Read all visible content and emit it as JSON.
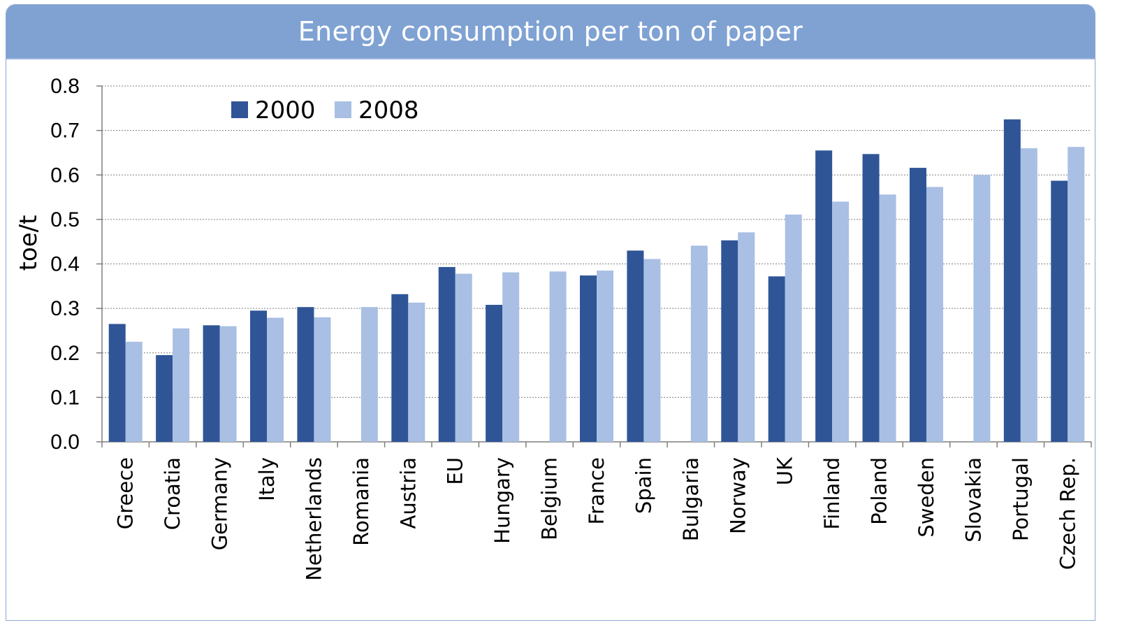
{
  "chart_data": {
    "type": "bar",
    "title": "Energy consumption per ton of paper",
    "xlabel": "",
    "ylabel": "toe/t",
    "ylim": [
      0,
      0.8
    ],
    "yticks": [
      "0.0",
      "0.1",
      "0.2",
      "0.3",
      "0.4",
      "0.5",
      "0.6",
      "0.7",
      "0.8"
    ],
    "grid": true,
    "legend_position": "top-left",
    "categories": [
      "Greece",
      "Croatia",
      "Germany",
      "Italy",
      "Netherlands",
      "Romania",
      "Austria",
      "EU",
      "Hungary",
      "Belgium",
      "France",
      "Spain",
      "Bulgaria",
      "Norway",
      "UK",
      "Finland",
      "Poland",
      "Sweden",
      "Slovakia",
      "Portugal",
      "Czech Rep."
    ],
    "series": [
      {
        "name": "2000",
        "color": "#2f5597",
        "values": [
          0.265,
          0.195,
          0.262,
          0.295,
          0.303,
          null,
          0.332,
          0.393,
          0.308,
          null,
          0.374,
          0.43,
          null,
          0.453,
          0.372,
          0.655,
          0.647,
          0.616,
          null,
          0.725,
          0.587
        ]
      },
      {
        "name": "2008",
        "color": "#a9bfe3",
        "values": [
          0.225,
          0.255,
          0.26,
          0.279,
          0.28,
          0.303,
          0.313,
          0.378,
          0.381,
          0.383,
          0.385,
          0.411,
          0.441,
          0.471,
          0.511,
          0.54,
          0.556,
          0.573,
          0.6,
          0.66,
          0.663
        ]
      }
    ]
  }
}
